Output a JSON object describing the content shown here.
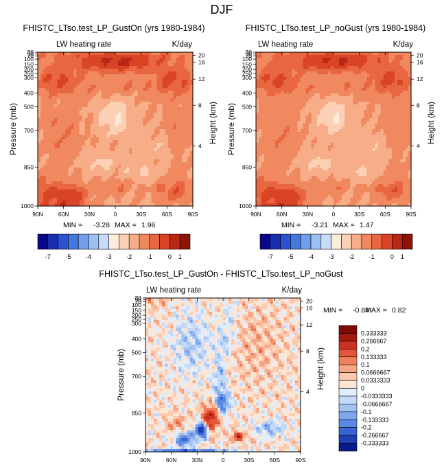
{
  "figure": {
    "title": "DJF"
  },
  "colors": {
    "lw_palette": [
      "#08088a",
      "#1a2fb0",
      "#2b52d0",
      "#4577e0",
      "#6f9fea",
      "#9cc0f2",
      "#c7dbf8",
      "#fdebdc",
      "#fbd0b4",
      "#f7ae88",
      "#f18960",
      "#e86640",
      "#d94424",
      "#b92715",
      "#8e1206"
    ],
    "diff_palette": [
      "#0b1a8a",
      "#1e3fb5",
      "#3865d6",
      "#5b88e4",
      "#7fa7ec",
      "#a2c2f2",
      "#c4d9f7",
      "#e2edfb",
      "#fde5d4",
      "#fbc9ae",
      "#f6a585",
      "#ef7f5d",
      "#e4563a",
      "#cc3220",
      "#a51a0f",
      "#7d0a05"
    ],
    "frame": "#000000"
  },
  "chart_data": [
    {
      "type": "heatmap",
      "name": "gust_on",
      "title": "FHISTC_LTso.test_LP_GustOn (yrs 1980-1984)",
      "left_string": "LW heating rate",
      "right_string": "K/day",
      "xlabel": "",
      "ylabel": "Pressure (mb)",
      "ylabel_right": "Height (km)",
      "x_ticks": [
        "90N",
        "60N",
        "30N",
        "0",
        "30S",
        "60S",
        "90S"
      ],
      "x_tick_values": [
        90,
        60,
        30,
        0,
        -30,
        -60,
        -90
      ],
      "y_ticks": [
        "30",
        "50",
        "70",
        "100",
        "150",
        "200",
        "250",
        "300",
        "400",
        "500",
        "700",
        "850",
        "1000"
      ],
      "y_tick_values": [
        30,
        50,
        70,
        100,
        150,
        200,
        250,
        300,
        400,
        500,
        700,
        850,
        1000
      ],
      "y_right_ticks": [
        "20",
        "16",
        "12",
        "8",
        "4"
      ],
      "y_right_tick_values": [
        20,
        16,
        12,
        8,
        4
      ],
      "stats": {
        "min_label": "MIN =",
        "min": "-3.28",
        "max_label": "MAX =",
        "max": "1.96"
      },
      "colorbar_labels": [
        "-7",
        "-5",
        "-4",
        "-3",
        "-2",
        "-1",
        "0",
        "1"
      ]
    },
    {
      "type": "heatmap",
      "name": "no_gust",
      "title": "FHISTC_LTso.test_LP_noGust (yrs 1980-1984)",
      "left_string": "LW heating rate",
      "right_string": "K/day",
      "xlabel": "",
      "ylabel": "Pressure (mb)",
      "ylabel_right": "Height (km)",
      "x_ticks": [
        "90N",
        "60N",
        "30N",
        "0",
        "30S",
        "60S",
        "90S"
      ],
      "x_tick_values": [
        90,
        60,
        30,
        0,
        -30,
        -60,
        -90
      ],
      "y_ticks": [
        "30",
        "50",
        "70",
        "100",
        "150",
        "200",
        "250",
        "300",
        "400",
        "500",
        "700",
        "850",
        "1000"
      ],
      "y_tick_values": [
        30,
        50,
        70,
        100,
        150,
        200,
        250,
        300,
        400,
        500,
        700,
        850,
        1000
      ],
      "y_right_ticks": [
        "20",
        "16",
        "12",
        "8",
        "4"
      ],
      "y_right_tick_values": [
        20,
        16,
        12,
        8,
        4
      ],
      "stats": {
        "min_label": "MIN =",
        "min": "-3.21",
        "max_label": "MAX =",
        "max": "1.47"
      },
      "colorbar_labels": [
        "-7",
        "-5",
        "-4",
        "-3",
        "-2",
        "-1",
        "0",
        "1"
      ]
    },
    {
      "type": "heatmap",
      "name": "difference",
      "title": "FHISTC_LTso.test_LP_GustOn - FHISTC_LTso.test_LP_noGust",
      "left_string": "LW heating rate",
      "right_string": "K/day",
      "xlabel": "",
      "ylabel": "Pressure (mb)",
      "ylabel_right": "Height (km)",
      "x_ticks": [
        "90N",
        "60N",
        "30N",
        "0",
        "30S",
        "60S",
        "90S"
      ],
      "x_tick_values": [
        90,
        60,
        30,
        0,
        -30,
        -60,
        -90
      ],
      "y_ticks": [
        "30",
        "50",
        "70",
        "100",
        "150",
        "200",
        "250",
        "300",
        "400",
        "500",
        "700",
        "850",
        "1000"
      ],
      "y_tick_values": [
        30,
        50,
        70,
        100,
        150,
        200,
        250,
        300,
        400,
        500,
        700,
        850,
        1000
      ],
      "y_right_ticks": [
        "20",
        "16",
        "12",
        "8",
        "4"
      ],
      "y_right_tick_values": [
        20,
        16,
        12,
        8,
        4
      ],
      "stats": {
        "min_label": "MIN =",
        "min": "-0.84",
        "max_label": "MAX =",
        "max": "0.82"
      },
      "colorbar_labels": [
        "0.333333",
        "0.266667",
        "0.2",
        "0.133333",
        "0.1",
        "0.0666667",
        "0.0333333",
        "0",
        "-0.0333333",
        "-0.0666667",
        "-0.1",
        "-0.133333",
        "-0.2",
        "-0.266667",
        "-0.333333"
      ]
    }
  ]
}
